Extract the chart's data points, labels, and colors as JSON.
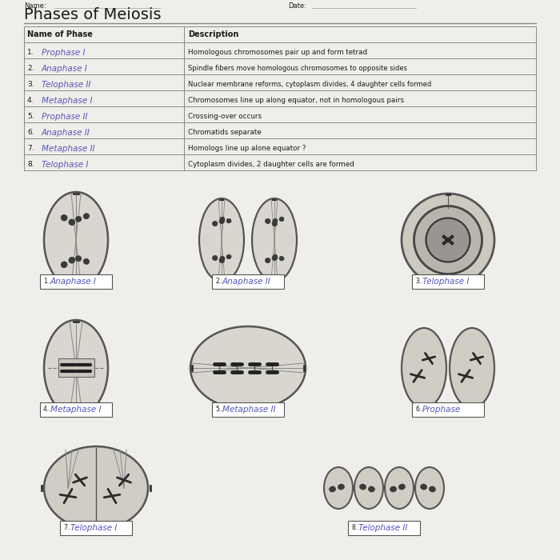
{
  "title": "Phases of Meiosis",
  "table_headers": [
    "Name of Phase",
    "Description"
  ],
  "answers": [
    "Prophase I",
    "Anaphase I",
    "Telophase II",
    "Metaphase I",
    "Prophase II",
    "Anaphase II",
    "Metaphase II",
    "Telophase I"
  ],
  "descriptions": [
    "Homologous chromosomes pair up and form tetrad",
    "Spindle fibers move homologous chromosomes to opposite sides",
    "Nuclear membrane reforms, cytoplasm divides, 4 daughter cells formed",
    "Chromosomes line up along equator, not in homologous pairs",
    "Crossing-over occurs",
    "Chromatids separate",
    "Homologs line up alone equator ?",
    "Cytoplasm divides, 2 daughter cells are formed"
  ],
  "diagram_labels": [
    "Anaphase I",
    "Anaphase II",
    "Telophase I",
    "Metaphase I",
    "Metaphase II",
    "Prophase",
    "Telophase I",
    "Telophase II"
  ],
  "bg_color": "#f0eeea",
  "hw_color": "#5555bb",
  "pr_color": "#1a1a1a",
  "table_line_color": "#888888"
}
